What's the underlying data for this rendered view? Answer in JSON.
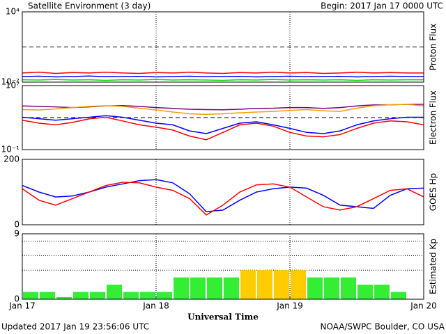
{
  "header": {
    "title": "Satellite Environment (3 day)",
    "begin": "Begin:  2017 Jan 17 0000 UTC"
  },
  "footer": {
    "updated": "Updated 2017 Jan 19 23:56:06 UTC",
    "credit": "NOAA/SWPC Boulder, CO USA"
  },
  "x_axis": {
    "label": "Universal Time",
    "xlim": [
      0,
      72
    ],
    "xticks": [
      {
        "value": 0,
        "label": "Jan 17"
      },
      {
        "value": 24,
        "label": "Jan 18"
      },
      {
        "value": 48,
        "label": "Jan 19"
      },
      {
        "value": 72,
        "label": "Jan 20"
      }
    ]
  },
  "chart_data": [
    {
      "type": "line",
      "y_label": "Proton Flux",
      "log": true,
      "ylim": [
        0.01,
        10000
      ],
      "yticks": [
        {
          "value": 10000,
          "label": "10⁴"
        },
        {
          "value": 0.01,
          "label": "10⁻²"
        }
      ],
      "reference_lines": [
        10
      ],
      "reference_style": "dashed",
      "x": [
        0,
        3,
        6,
        9,
        12,
        15,
        18,
        21,
        24,
        27,
        30,
        33,
        36,
        39,
        42,
        45,
        48,
        51,
        54,
        57,
        60,
        63,
        66,
        69,
        72
      ],
      "series": [
        {
          "color": "#ff0000",
          "values": [
            0.06,
            0.07,
            0.055,
            0.065,
            0.06,
            0.07,
            0.06,
            0.055,
            0.065,
            0.06,
            0.07,
            0.06,
            0.055,
            0.065,
            0.06,
            0.07,
            0.06,
            0.065,
            0.055,
            0.06,
            0.07,
            0.06,
            0.065,
            0.06,
            0.06
          ]
        },
        {
          "color": "#0000ff",
          "values": [
            0.03,
            0.032,
            0.028,
            0.03,
            0.033,
            0.029,
            0.03,
            0.031,
            0.028,
            0.03,
            0.032,
            0.029,
            0.03,
            0.031,
            0.028,
            0.03,
            0.032,
            0.029,
            0.03,
            0.031,
            0.028,
            0.03,
            0.032,
            0.03,
            0.03
          ]
        },
        {
          "color": "#00dd00",
          "values": [
            0.016,
            0.015,
            0.017,
            0.015,
            0.016,
            0.014,
            0.016,
            0.015,
            0.017,
            0.015,
            0.016,
            0.015,
            0.014,
            0.016,
            0.015,
            0.017,
            0.015,
            0.016,
            0.015,
            0.016,
            0.014,
            0.016,
            0.015,
            0.016,
            0.016
          ]
        }
      ]
    },
    {
      "type": "line",
      "y_label": "Electron Flux",
      "log": true,
      "ylim": [
        0.1,
        10000000
      ],
      "yticks": [
        {
          "value": 10000000,
          "label": "10⁷"
        },
        {
          "value": 0.1,
          "label": "10⁻¹"
        }
      ],
      "reference_lines": [
        1000
      ],
      "reference_style": "dashed",
      "x": [
        0,
        3,
        6,
        9,
        12,
        15,
        18,
        21,
        24,
        27,
        30,
        33,
        36,
        39,
        42,
        45,
        48,
        51,
        54,
        57,
        60,
        63,
        66,
        69,
        72
      ],
      "series": [
        {
          "color": "#800080",
          "values": [
            29000,
            25000,
            22000,
            18000,
            22000,
            29000,
            32000,
            25000,
            18000,
            14000,
            11000,
            10000,
            9500,
            11000,
            14000,
            15000,
            18000,
            18000,
            14000,
            18000,
            29000,
            38000,
            40000,
            45000,
            48000
          ]
        },
        {
          "color": "#f0a000",
          "values": [
            10000,
            9000,
            12000,
            18000,
            25000,
            30000,
            25000,
            15000,
            9000,
            5000,
            3000,
            2500,
            3000,
            4000,
            5000,
            6000,
            8000,
            10000,
            7000,
            6000,
            15000,
            30000,
            40000,
            45000,
            30000
          ]
        },
        {
          "color": "#0000ff",
          "values": [
            1100,
            720,
            470,
            720,
            1100,
            1700,
            1100,
            470,
            200,
            125,
            22,
            10,
            45,
            200,
            300,
            125,
            45,
            14,
            10,
            22,
            125,
            380,
            720,
            1100,
            1100
          ]
        },
        {
          "color": "#ff0000",
          "values": [
            470,
            200,
            125,
            250,
            700,
            1100,
            380,
            125,
            65,
            28,
            5,
            1.7,
            14,
            125,
            200,
            85,
            14,
            5,
            4,
            7.5,
            45,
            200,
            380,
            300,
            125
          ]
        }
      ]
    },
    {
      "type": "line",
      "y_label": "GOES Hp",
      "log": false,
      "ylim": [
        0,
        200
      ],
      "yticks": [
        200,
        0
      ],
      "x": [
        0,
        3,
        6,
        9,
        12,
        15,
        18,
        21,
        24,
        27,
        30,
        33,
        36,
        39,
        42,
        45,
        48,
        51,
        54,
        57,
        60,
        63,
        66,
        69,
        72
      ],
      "series": [
        {
          "color": "#0000ff",
          "values": [
            120,
            100,
            85,
            88,
            100,
            115,
            125,
            135,
            138,
            128,
            95,
            40,
            45,
            75,
            100,
            110,
            115,
            112,
            90,
            60,
            55,
            50,
            90,
            110,
            112
          ]
        },
        {
          "color": "#ff0000",
          "values": [
            110,
            75,
            60,
            80,
            100,
            120,
            130,
            128,
            115,
            105,
            80,
            30,
            60,
            100,
            122,
            125,
            115,
            85,
            55,
            45,
            55,
            80,
            105,
            110,
            85
          ]
        }
      ]
    },
    {
      "type": "bar",
      "y_label": "Estimated Kp",
      "log": false,
      "ylim": [
        0,
        9
      ],
      "yticks": [
        9,
        0
      ],
      "reference_lines": [
        4,
        6,
        8
      ],
      "reference_style": "dotted",
      "x": [
        0,
        3,
        6,
        9,
        12,
        15,
        18,
        21,
        24,
        27,
        30,
        33,
        36,
        39,
        42,
        45,
        48,
        51,
        54,
        57,
        60,
        63,
        66
      ],
      "values": [
        1,
        1,
        0.3,
        1,
        1,
        2,
        1,
        1,
        1,
        3,
        3,
        3,
        3,
        4,
        4,
        4,
        4,
        3,
        3,
        3,
        2,
        2,
        1
      ],
      "colors": [
        "#33ee33",
        "#33ee33",
        "#33ee33",
        "#33ee33",
        "#33ee33",
        "#33ee33",
        "#33ee33",
        "#33ee33",
        "#33ee33",
        "#33ee33",
        "#33ee33",
        "#33ee33",
        "#33ee33",
        "#ffcc00",
        "#ffcc00",
        "#ffcc00",
        "#ffcc00",
        "#33ee33",
        "#33ee33",
        "#33ee33",
        "#33ee33",
        "#33ee33",
        "#33ee33"
      ]
    }
  ]
}
